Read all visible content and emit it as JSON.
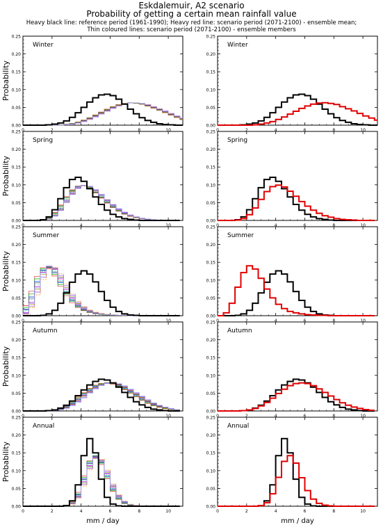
{
  "header": {
    "title": "Eskdalemuir, A2 scenario",
    "subtitle": "Probability of getting a certain mean rainfall value",
    "note_line1": "Heavy black line: reference period (1961-1990); Heavy red line: scenario period (2071-2100) - ensemble mean;",
    "note_line2": "Thin coloured lines: scenario period (2071-2100) - ensemble members"
  },
  "colors": {
    "reference": "#000000",
    "scenario_mean": "#e00000",
    "members": [
      "#e03030",
      "#00aa00",
      "#2050ff",
      "#00c8c8",
      "#c000c0",
      "#909000",
      "#8040e0",
      "#ff8000",
      "#606060",
      "#a0a0ff",
      "#008080",
      "#b06040"
    ]
  },
  "chart_data": {
    "type": "step-histogram",
    "panels": [
      "Winter",
      "Spring",
      "Summer",
      "Autumn",
      "Annual"
    ],
    "ylabel": "Probability",
    "xlabel": "mm / day",
    "xlim": [
      0,
      11
    ],
    "ylim": [
      0,
      0.25
    ],
    "x_ticks": [
      0,
      2,
      4,
      6,
      8,
      10
    ],
    "y_ticks": [
      "0.00",
      "0.05",
      "0.10",
      "0.15",
      "0.20",
      "0.25"
    ],
    "bin_width": 0.4,
    "series": {
      "Winter": {
        "reference": [
          0,
          0,
          0,
          0,
          0.001,
          0.003,
          0.006,
          0.012,
          0.022,
          0.035,
          0.05,
          0.065,
          0.077,
          0.085,
          0.087,
          0.083,
          0.073,
          0.059,
          0.045,
          0.032,
          0.021,
          0.013,
          0.008,
          0.004,
          0.002,
          0.001,
          0,
          0
        ],
        "scenario_mean": [
          0,
          0,
          0,
          0,
          0,
          0,
          0.001,
          0.003,
          0.006,
          0.01,
          0.016,
          0.023,
          0.031,
          0.039,
          0.047,
          0.054,
          0.059,
          0.062,
          0.063,
          0.061,
          0.058,
          0.052,
          0.046,
          0.04,
          0.033,
          0.026,
          0.02,
          0.014
        ]
      },
      "Spring": {
        "reference": [
          0,
          0,
          0,
          0.002,
          0.01,
          0.03,
          0.061,
          0.092,
          0.115,
          0.121,
          0.11,
          0.089,
          0.066,
          0.045,
          0.029,
          0.017,
          0.01,
          0.005,
          0.003,
          0.001,
          0,
          0,
          0,
          0,
          0,
          0,
          0
        ],
        "scenario_mean": [
          0,
          0,
          0,
          0.001,
          0.005,
          0.016,
          0.035,
          0.059,
          0.081,
          0.095,
          0.099,
          0.094,
          0.082,
          0.068,
          0.053,
          0.04,
          0.029,
          0.02,
          0.013,
          0.009,
          0.005,
          0.003,
          0.002,
          0.001,
          0,
          0,
          0
        ]
      },
      "Summer": {
        "reference": [
          0,
          0,
          0,
          0.001,
          0.005,
          0.015,
          0.035,
          0.064,
          0.094,
          0.117,
          0.126,
          0.117,
          0.095,
          0.068,
          0.043,
          0.024,
          0.012,
          0.005,
          0.002,
          0.001,
          0,
          0,
          0,
          0,
          0,
          0,
          0
        ],
        "scenario_mean": [
          0,
          0.008,
          0.035,
          0.08,
          0.121,
          0.14,
          0.131,
          0.105,
          0.075,
          0.05,
          0.032,
          0.02,
          0.012,
          0.008,
          0.005,
          0.003,
          0.002,
          0.001,
          0.001,
          0,
          0,
          0,
          0,
          0,
          0,
          0,
          0
        ]
      },
      "Autumn": {
        "reference": [
          0,
          0,
          0,
          0,
          0.001,
          0.003,
          0.008,
          0.016,
          0.028,
          0.043,
          0.059,
          0.073,
          0.083,
          0.089,
          0.087,
          0.079,
          0.067,
          0.052,
          0.038,
          0.026,
          0.017,
          0.01,
          0.005,
          0.003,
          0.001,
          0,
          0
        ],
        "scenario_mean": [
          0,
          0,
          0,
          0,
          0.001,
          0.003,
          0.007,
          0.014,
          0.024,
          0.036,
          0.049,
          0.061,
          0.071,
          0.077,
          0.079,
          0.077,
          0.071,
          0.062,
          0.052,
          0.042,
          0.032,
          0.023,
          0.016,
          0.011,
          0.007,
          0.004,
          0.002
        ]
      },
      "Annual": {
        "reference": [
          0,
          0,
          0,
          0,
          0,
          0,
          0,
          0.002,
          0.015,
          0.06,
          0.142,
          0.19,
          0.15,
          0.076,
          0.025,
          0.006,
          0.001,
          0,
          0,
          0,
          0,
          0,
          0,
          0,
          0,
          0,
          0
        ],
        "scenario_mean": [
          0,
          0,
          0,
          0,
          0,
          0,
          0,
          0.002,
          0.01,
          0.035,
          0.081,
          0.126,
          0.142,
          0.121,
          0.08,
          0.044,
          0.02,
          0.008,
          0.003,
          0.001,
          0,
          0,
          0,
          0,
          0,
          0,
          0
        ]
      }
    },
    "member_shifts": {
      "Winter": [
        0.3,
        0.5,
        0.7,
        0.9,
        1.1,
        0.4,
        0.8,
        1.0,
        0.6,
        1.2
      ],
      "Spring": [
        -0.4,
        -0.2,
        0.0,
        0.1,
        0.2,
        0.3,
        0.4,
        0.0,
        -0.3,
        0.25
      ],
      "Summer": [
        -2.0,
        -1.8,
        -1.6,
        -1.4,
        -1.2,
        -1.0,
        -0.8,
        -0.6,
        -1.5,
        -1.1
      ],
      "Autumn": [
        -0.3,
        -0.1,
        0.1,
        0.3,
        0.5,
        0.7,
        0.9,
        0.0,
        0.4,
        1.1
      ],
      "Annual": [
        -0.1,
        0.0,
        0.1,
        0.2,
        0.3,
        0.4,
        0.5,
        0.6,
        0.15,
        0.35
      ]
    }
  }
}
